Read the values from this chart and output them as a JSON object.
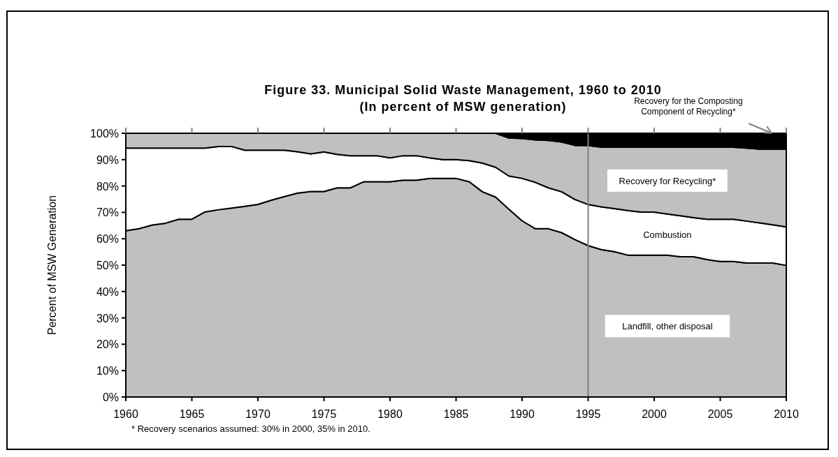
{
  "chart_data": {
    "type": "area",
    "stacked": true,
    "title": "Figure 33. Municipal Solid Waste Management, 1960 to 2010",
    "subtitle": "(In percent of MSW generation)",
    "ylabel": "Percent of MSW Generation",
    "x": [
      1960,
      1961,
      1962,
      1963,
      1964,
      1965,
      1966,
      1967,
      1968,
      1969,
      1970,
      1971,
      1972,
      1973,
      1974,
      1975,
      1976,
      1977,
      1978,
      1979,
      1980,
      1981,
      1982,
      1983,
      1984,
      1985,
      1986,
      1987,
      1988,
      1989,
      1990,
      1991,
      1992,
      1993,
      1994,
      1995,
      1996,
      1997,
      1998,
      1999,
      2000,
      2001,
      2002,
      2003,
      2004,
      2005,
      2006,
      2007,
      2008,
      2009,
      2010
    ],
    "series": [
      {
        "name": "Landfill, other disposal",
        "color": "#c0c0c0",
        "values": [
          63.0,
          63.8,
          65.2,
          65.9,
          67.4,
          67.4,
          70.2,
          71.0,
          71.6,
          72.3,
          73.0,
          74.6,
          76.0,
          77.3,
          77.9,
          77.9,
          79.3,
          79.3,
          81.6,
          81.6,
          81.6,
          82.2,
          82.2,
          82.9,
          82.9,
          82.9,
          81.6,
          77.8,
          75.8,
          71.2,
          66.8,
          63.8,
          63.8,
          62.3,
          59.7,
          57.4,
          55.9,
          55.1,
          53.8,
          53.8,
          53.8,
          53.8,
          53.2,
          53.2,
          52.1,
          51.4,
          51.4,
          50.8,
          50.8,
          50.8,
          49.9
        ]
      },
      {
        "name": "Combustion",
        "color": "#ffffff",
        "values": [
          31.4,
          30.6,
          29.2,
          28.5,
          27.0,
          27.0,
          24.2,
          24.0,
          23.4,
          21.3,
          20.6,
          19.0,
          17.6,
          15.7,
          14.3,
          15.0,
          12.7,
          12.2,
          9.9,
          9.9,
          9.1,
          9.3,
          9.3,
          7.8,
          7.1,
          7.1,
          8.0,
          10.9,
          11.3,
          12.6,
          16.1,
          17.6,
          15.5,
          15.5,
          15.2,
          15.6,
          16.2,
          16.3,
          16.9,
          16.3,
          16.3,
          15.6,
          15.5,
          14.8,
          15.3,
          16.0,
          16.0,
          15.9,
          15.2,
          14.5,
          14.6
        ]
      },
      {
        "name": "Recovery for Recycling*",
        "color": "#c0c0c0",
        "values": [
          5.6,
          5.6,
          5.6,
          5.6,
          5.6,
          5.6,
          5.6,
          5.0,
          5.0,
          6.4,
          6.4,
          6.4,
          6.4,
          7.0,
          7.8,
          7.1,
          8.0,
          8.5,
          8.5,
          8.5,
          9.3,
          8.5,
          8.5,
          9.3,
          10.0,
          10.0,
          10.4,
          11.3,
          12.9,
          14.4,
          15.1,
          16.1,
          18.0,
          18.9,
          20.5,
          22.4,
          22.6,
          23.3,
          24.0,
          24.6,
          24.6,
          25.3,
          26.0,
          26.7,
          27.3,
          27.3,
          27.3,
          27.7,
          28.0,
          28.7,
          29.5
        ]
      },
      {
        "name": "Recovery for the Composting Component of Recycling*",
        "color": "#000000",
        "values": [
          0,
          0,
          0,
          0,
          0,
          0,
          0,
          0,
          0,
          0,
          0,
          0,
          0,
          0,
          0,
          0,
          0,
          0,
          0,
          0,
          0,
          0,
          0,
          0,
          0,
          0,
          0,
          0,
          0,
          1.8,
          2.0,
          2.5,
          2.7,
          3.3,
          4.6,
          4.6,
          5.3,
          5.3,
          5.3,
          5.3,
          5.3,
          5.3,
          5.3,
          5.3,
          5.3,
          5.3,
          5.3,
          5.6,
          6.0,
          6.0,
          6.0
        ]
      }
    ],
    "xlim": [
      1960,
      2010
    ],
    "xticks": [
      1960,
      1965,
      1970,
      1975,
      1980,
      1985,
      1990,
      1995,
      2000,
      2005,
      2010
    ],
    "ylim": [
      0,
      100
    ],
    "yticks": [
      {
        "value": 0,
        "label": "0%"
      },
      {
        "value": 10,
        "label": "10%"
      },
      {
        "value": 20,
        "label": "20%"
      },
      {
        "value": 30,
        "label": "30%"
      },
      {
        "value": 40,
        "label": "40%"
      },
      {
        "value": 50,
        "label": "50%"
      },
      {
        "value": 60,
        "label": "60%"
      },
      {
        "value": 70,
        "label": "70%"
      },
      {
        "value": 80,
        "label": "80%"
      },
      {
        "value": 90,
        "label": "90%"
      },
      {
        "value": 100,
        "label": "100%"
      }
    ],
    "ref_lines": [
      {
        "axis": "x",
        "value": 1995,
        "color": "#808080"
      }
    ],
    "annotations": [
      "* Recovery scenarios assumed: 30% in 2000, 35% in 2010."
    ],
    "grid": false
  }
}
